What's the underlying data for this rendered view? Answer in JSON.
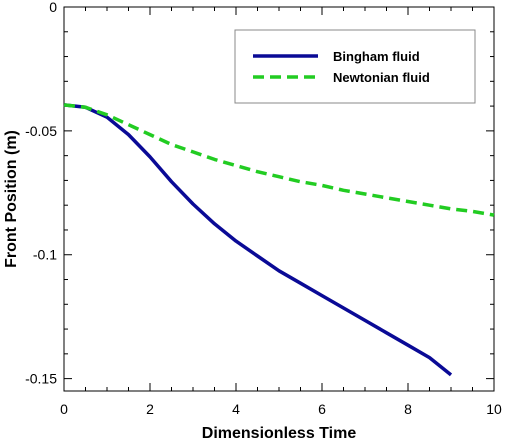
{
  "chart_data": {
    "type": "line",
    "xlabel": "Dimensionless Time",
    "ylabel": "Front Position (m)",
    "xlim": [
      0,
      10
    ],
    "ylim": [
      -0.155,
      0
    ],
    "xticks": [
      0,
      2,
      4,
      6,
      8,
      10
    ],
    "xtick_labels": [
      "0",
      "2",
      "4",
      "6",
      "8",
      "10"
    ],
    "yticks": [
      0,
      -0.05,
      -0.1,
      -0.15
    ],
    "ytick_labels": [
      "0",
      "-0.05",
      "-0.1",
      "-0.15"
    ],
    "grid": false,
    "legend_position": "top-right",
    "series": [
      {
        "name": "Bingham fluid",
        "color": "#0a0a96",
        "style": "solid",
        "x": [
          0,
          0.5,
          1.0,
          1.5,
          2.0,
          2.5,
          3.0,
          3.5,
          4.0,
          4.5,
          5.0,
          5.5,
          6.0,
          6.5,
          7.0,
          7.5,
          8.0,
          8.5,
          9.0
        ],
        "y": [
          -0.0395,
          -0.0405,
          -0.0445,
          -0.0515,
          -0.0605,
          -0.0705,
          -0.0795,
          -0.0875,
          -0.0945,
          -0.1005,
          -0.1065,
          -0.1115,
          -0.1165,
          -0.1215,
          -0.1265,
          -0.1315,
          -0.1365,
          -0.1415,
          -0.1485
        ]
      },
      {
        "name": "Newtonian fluid",
        "color": "#22cc22",
        "style": "dashed",
        "x": [
          0,
          0.5,
          1.0,
          1.5,
          2.0,
          2.5,
          3.0,
          3.5,
          4.0,
          4.5,
          5.0,
          5.5,
          6.0,
          6.5,
          7.0,
          7.5,
          8.0,
          8.5,
          9.0,
          9.5,
          10.0
        ],
        "y": [
          -0.0395,
          -0.0405,
          -0.0435,
          -0.0475,
          -0.0515,
          -0.0555,
          -0.0585,
          -0.0615,
          -0.064,
          -0.0665,
          -0.0685,
          -0.0705,
          -0.072,
          -0.074,
          -0.0755,
          -0.077,
          -0.0785,
          -0.08,
          -0.0815,
          -0.0825,
          -0.084
        ]
      }
    ]
  }
}
